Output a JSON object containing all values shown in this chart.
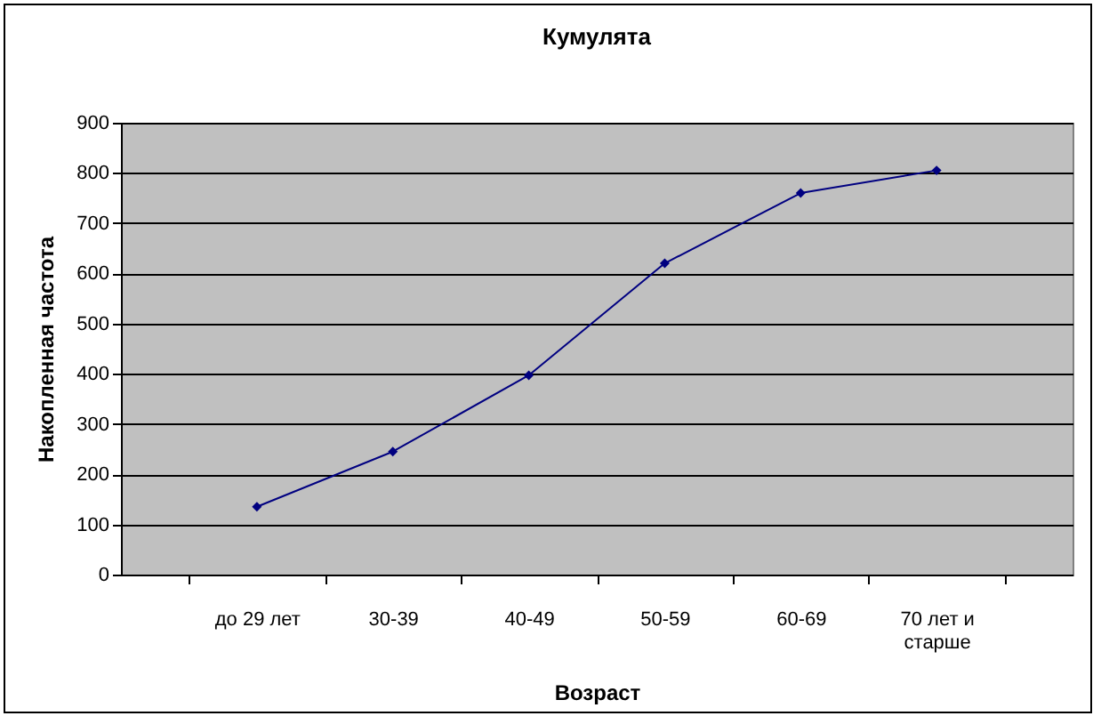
{
  "chart_data": {
    "type": "line",
    "title": "Кумулята",
    "xlabel": "Возраст",
    "ylabel": "Накопленная частота",
    "categories": [
      "до 29 лет",
      "30-39",
      "40-49",
      "50-59",
      "60-69",
      "70 лет и старше"
    ],
    "series": [
      {
        "color": "#000080",
        "values": [
          135,
          245,
          397,
          620,
          760,
          805
        ]
      }
    ],
    "ylim": [
      0,
      900
    ],
    "yticks": [
      0,
      100,
      200,
      300,
      400,
      500,
      600,
      700,
      800,
      900
    ],
    "grid": "y",
    "marker": "diamond",
    "line_style": "solid"
  }
}
